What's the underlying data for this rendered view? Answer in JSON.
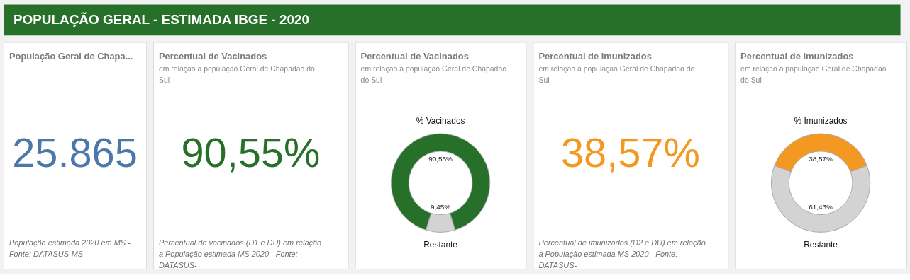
{
  "chart_data": [
    {
      "type": "other",
      "title": "POPULAÇÃO GERAL - ESTIMADA IBGE - 2020",
      "color": "#27702a"
    },
    {
      "type": "other",
      "title": "População Geral de Chapa...",
      "annotations": [
        "25.865",
        "População estimada 2020 em MS - Fonte: DATASUS-MS"
      ],
      "color": "#4a78a8"
    },
    {
      "type": "other",
      "title": "Percentual de Vacinados",
      "subtitle": "em relação a população Geral de Chapadão do Sul",
      "annotations": [
        "90,55%",
        "Percentual de vacinados (D1 e DU) em relação a População estimada MS 2020 - Fonte: DATASUS-"
      ],
      "color": "#27702a"
    },
    {
      "type": "donut",
      "title": "Percentual de Vacinados",
      "subtitle": "em relação a população Geral de Chapadão do Sul",
      "categories": [
        "% Vacinados",
        "Restante"
      ],
      "values": [
        90.55,
        9.45
      ],
      "colors": [
        "#27702a",
        "#d3d3d3"
      ],
      "value_labels": [
        "90,55%",
        "9,45%"
      ]
    },
    {
      "type": "other",
      "title": "Percentual de Imunizados",
      "subtitle": "em relação a população Geral de Chapadão do Sul",
      "annotations": [
        "38,57%",
        "Percentual de imunizados (D2 e DU) em relação a População estimada MS 2020 - Fonte: DATASUS-"
      ],
      "color": "#f39820"
    },
    {
      "type": "donut",
      "title": "Percentual de Imunizados",
      "subtitle": "em relação a população Geral de Chapadão do Sul",
      "categories": [
        "% Imunizados",
        "Restante"
      ],
      "values": [
        38.57,
        61.43
      ],
      "colors": [
        "#f39820",
        "#d3d3d3"
      ],
      "value_labels": [
        "38,57%",
        "61,43%"
      ]
    }
  ]
}
